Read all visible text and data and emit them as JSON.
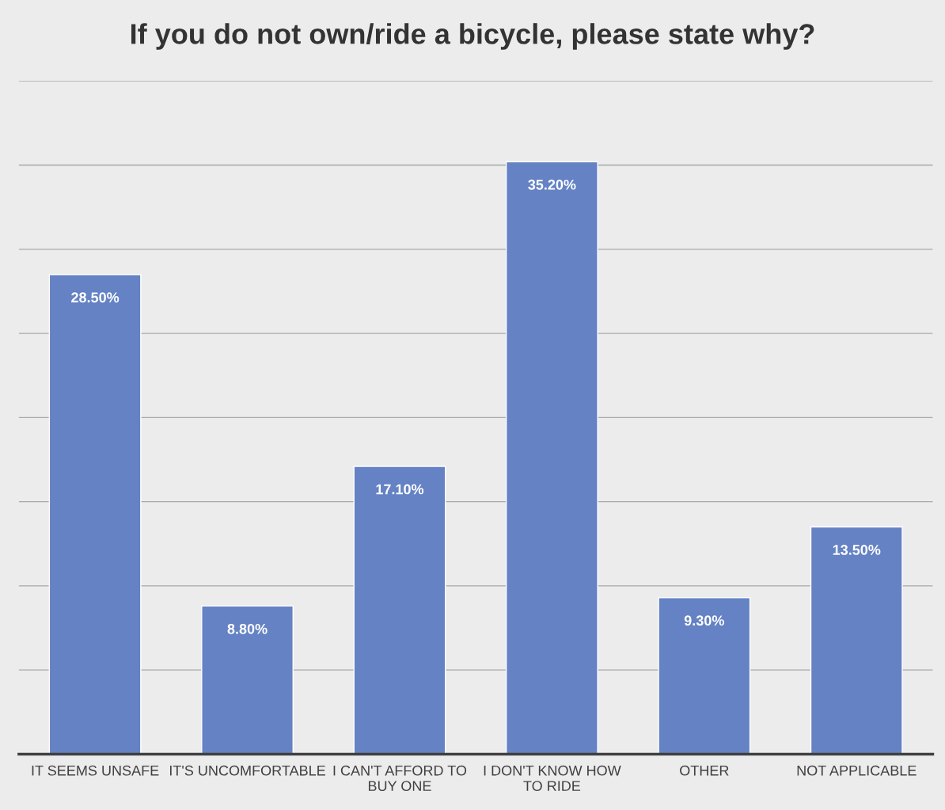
{
  "chart_data": {
    "type": "bar",
    "title": "If you do not own/ride a bicycle, please state why?",
    "categories": [
      "IT SEEMS UNSAFE",
      "IT'S UNCOMFORTABLE",
      "I CAN'T AFFORD TO BUY ONE",
      "I DON'T KNOW HOW TO RIDE",
      "OTHER",
      "NOT APPLICABLE"
    ],
    "values": [
      28.5,
      8.8,
      17.1,
      35.2,
      9.3,
      13.5
    ],
    "value_labels": [
      "28.50%",
      "8.80%",
      "17.10%",
      "35.20%",
      "9.30%",
      "13.50%"
    ],
    "color": "#6482c4",
    "ylim": [
      0,
      40
    ],
    "yticks": [
      {
        "value": 0,
        "label": null
      },
      {
        "value": 5,
        "label": null
      },
      {
        "value": 10,
        "label": null
      },
      {
        "value": 15,
        "label": null
      },
      {
        "value": 20,
        "label": null
      },
      {
        "value": 25,
        "label": null
      },
      {
        "value": 30,
        "label": null
      },
      {
        "value": 35,
        "label": null
      },
      {
        "value": 40,
        "label": null
      }
    ],
    "grid": "y",
    "tick_labels": "x"
  }
}
